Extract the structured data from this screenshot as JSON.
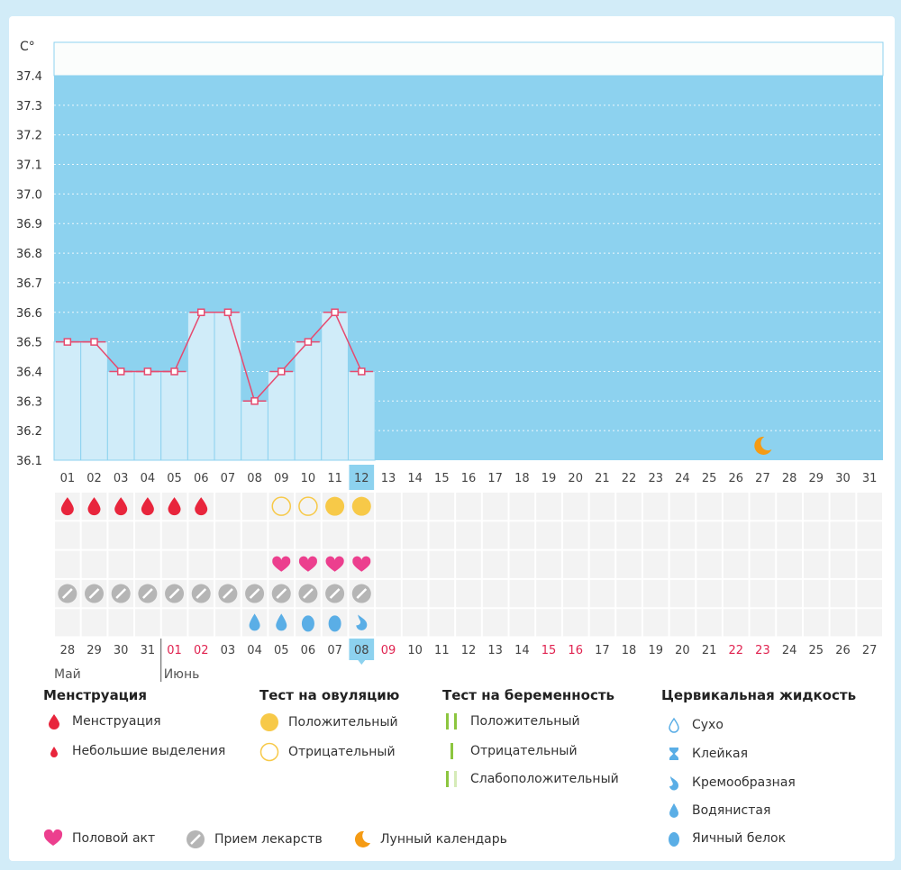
{
  "chart_data": {
    "type": "line",
    "unit": "C°",
    "ylim": [
      36.1,
      37.4
    ],
    "yticks": [
      "37.4",
      "37.3",
      "37.2",
      "37.1",
      "37.0",
      "36.9",
      "36.8",
      "36.7",
      "36.6",
      "36.5",
      "36.4",
      "36.3",
      "36.2",
      "36.1"
    ],
    "days": [
      "01",
      "02",
      "03",
      "04",
      "05",
      "06",
      "07",
      "08",
      "09",
      "10",
      "11",
      "12",
      "13",
      "14",
      "15",
      "16",
      "17",
      "18",
      "19",
      "20",
      "21",
      "22",
      "23",
      "24",
      "25",
      "26",
      "27",
      "28",
      "29",
      "30",
      "31"
    ],
    "today_index": 11,
    "series": [
      {
        "name": "temperature",
        "values": [
          36.5,
          36.5,
          36.4,
          36.4,
          36.4,
          36.6,
          36.6,
          36.3,
          36.4,
          36.5,
          36.6,
          36.4
        ]
      }
    ],
    "moon_day_index": 26,
    "menstruation_days": [
      0,
      1,
      2,
      3,
      4,
      5
    ],
    "ovulation_tests": [
      {
        "day": 8,
        "result": "negative"
      },
      {
        "day": 9,
        "result": "negative"
      },
      {
        "day": 10,
        "result": "positive"
      },
      {
        "day": 11,
        "result": "positive"
      }
    ],
    "intercourse_days": [
      8,
      9,
      10,
      11
    ],
    "medication_days": [
      0,
      1,
      2,
      3,
      4,
      5,
      6,
      7,
      8,
      9,
      10,
      11
    ],
    "cervical_fluid": [
      {
        "day": 7,
        "type": "watery"
      },
      {
        "day": 8,
        "type": "watery"
      },
      {
        "day": 9,
        "type": "egg-white"
      },
      {
        "day": 10,
        "type": "egg-white"
      },
      {
        "day": 11,
        "type": "creamy"
      }
    ],
    "cycle_dates": [
      "28",
      "29",
      "30",
      "31",
      "01",
      "02",
      "03",
      "04",
      "05",
      "06",
      "07",
      "08",
      "09",
      "10",
      "11",
      "12",
      "13",
      "14",
      "15",
      "16",
      "17",
      "18",
      "19",
      "20",
      "21",
      "22",
      "23",
      "24",
      "25",
      "26",
      "27"
    ],
    "cycle_date_highlight": [
      4,
      5,
      12,
      18,
      19,
      25,
      26
    ],
    "cycle_today_index": 11,
    "month_labels": [
      {
        "text": "Май",
        "start_index": 0
      },
      {
        "text": "Июнь",
        "start_index": 4
      }
    ]
  },
  "legend": {
    "menstruation": {
      "title": "Менструация",
      "items": [
        "Менструация",
        "Небольшие выделения"
      ]
    },
    "ovulation_test": {
      "title": "Тест на овуляцию",
      "items": [
        "Положительный",
        "Отрицательный"
      ]
    },
    "pregnancy_test": {
      "title": "Тест на беременность",
      "items": [
        "Положительный",
        "Отрицательный",
        "Слабоположительный"
      ]
    },
    "cervical_fluid": {
      "title": "Цервикальная жидкость",
      "items": [
        "Сухо",
        "Клейкая",
        "Кремообразная",
        "Водянистая",
        "Яичный белок"
      ]
    },
    "bottom": [
      "Половой акт",
      "Прием лекарств",
      "Лунный календарь"
    ]
  },
  "colors": {
    "page_bg": "#d2ecf8",
    "plot_bg": "#8dd2ef",
    "bar_fill": "#d0ecf9",
    "bar_stroke": "#8dd2ef",
    "line": "#e64a6f",
    "blood": "#e8253c",
    "ovulation": "#f7c948",
    "heart": "#ec3f8e",
    "pill": "#b5b5b5",
    "fluid": "#5aaee6",
    "moon": "#f59b14",
    "pregnancy": "#8cc63f",
    "today": "#8dd2ef",
    "date_red": "#e02350"
  }
}
